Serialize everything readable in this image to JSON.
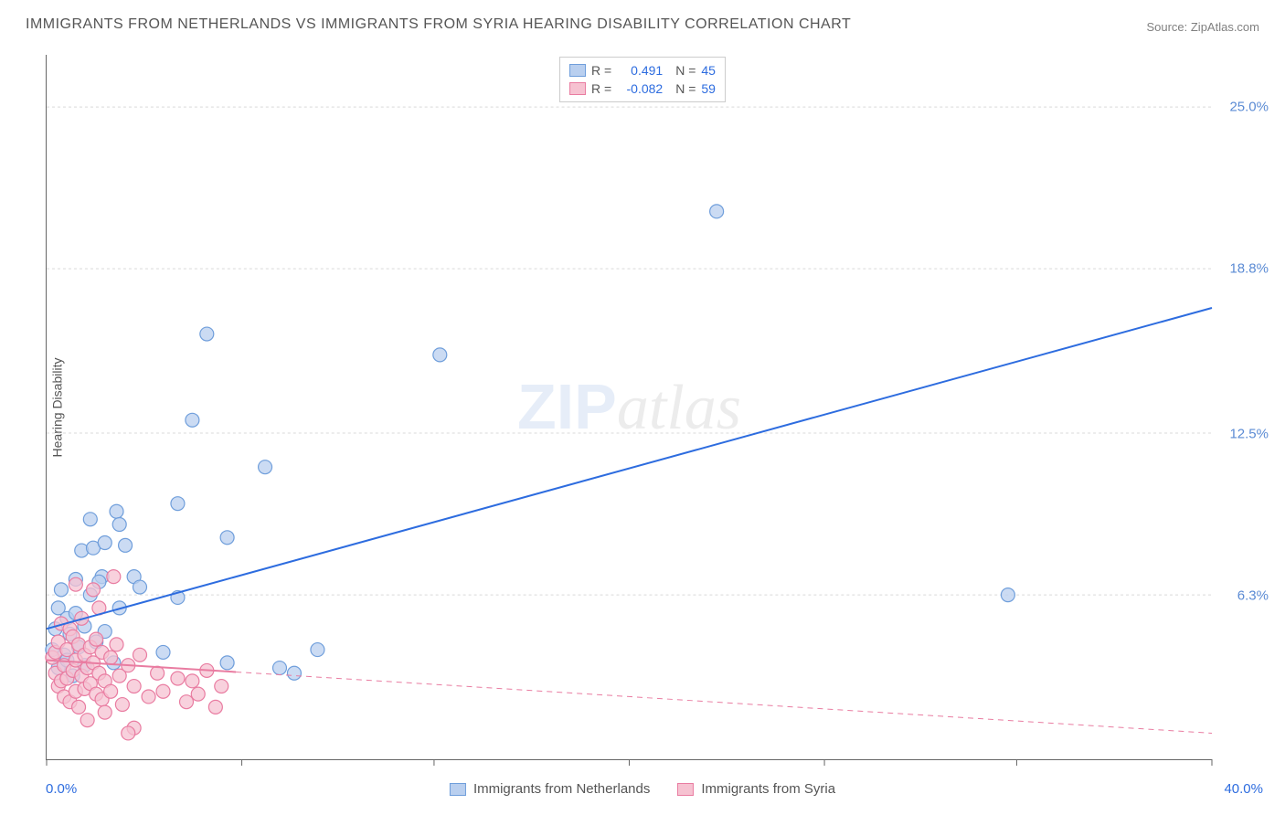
{
  "title": "IMMIGRANTS FROM NETHERLANDS VS IMMIGRANTS FROM SYRIA HEARING DISABILITY CORRELATION CHART",
  "source_label": "Source: ",
  "source_value": "ZipAtlas.com",
  "y_axis_label": "Hearing Disability",
  "watermark": {
    "part1": "ZIP",
    "part2": "atlas"
  },
  "chart": {
    "type": "scatter",
    "xlim": [
      0,
      40
    ],
    "ylim": [
      0,
      27
    ],
    "x_min_label": "0.0%",
    "x_max_label": "40.0%",
    "x_min_color": "#2d6cdf",
    "x_max_color": "#2d6cdf",
    "y_ticks": [
      {
        "v": 6.3,
        "label": "6.3%"
      },
      {
        "v": 12.5,
        "label": "12.5%"
      },
      {
        "v": 18.8,
        "label": "18.8%"
      },
      {
        "v": 25.0,
        "label": "25.0%"
      }
    ],
    "y_tick_color": "#5b8bd4",
    "grid_color": "#d9d9d9",
    "x_ticks": [
      0,
      6.7,
      13.3,
      20,
      26.7,
      33.3,
      40
    ],
    "background_color": "#ffffff",
    "series": [
      {
        "name": "Immigrants from Netherlands",
        "marker_fill": "#b9cfef",
        "marker_stroke": "#6f9edb",
        "marker_opacity": 0.75,
        "marker_radius": 7.5,
        "trend_color": "#2d6cdf",
        "trend_width": 2,
        "trend_dash": "none",
        "trend": {
          "x1": 0,
          "y1": 5.0,
          "x2": 40,
          "y2": 17.3
        },
        "r_label": "R =",
        "r_value": "0.491",
        "n_label": "N =",
        "n_value": "45",
        "points": [
          [
            0.2,
            4.2
          ],
          [
            0.3,
            5.0
          ],
          [
            0.4,
            3.5
          ],
          [
            0.4,
            5.8
          ],
          [
            0.5,
            6.5
          ],
          [
            0.6,
            4.0
          ],
          [
            0.7,
            3.8
          ],
          [
            0.7,
            5.4
          ],
          [
            0.8,
            4.8
          ],
          [
            0.9,
            3.2
          ],
          [
            1.0,
            6.9
          ],
          [
            1.0,
            5.6
          ],
          [
            1.1,
            4.3
          ],
          [
            1.2,
            8.0
          ],
          [
            1.3,
            5.1
          ],
          [
            1.3,
            3.6
          ],
          [
            1.5,
            6.3
          ],
          [
            1.5,
            9.2
          ],
          [
            1.6,
            8.1
          ],
          [
            1.7,
            4.5
          ],
          [
            1.9,
            7.0
          ],
          [
            2.0,
            8.3
          ],
          [
            2.0,
            4.9
          ],
          [
            2.3,
            3.7
          ],
          [
            2.4,
            9.5
          ],
          [
            2.5,
            5.8
          ],
          [
            2.7,
            8.2
          ],
          [
            3.0,
            7.0
          ],
          [
            3.2,
            6.6
          ],
          [
            4.0,
            4.1
          ],
          [
            4.5,
            6.2
          ],
          [
            4.5,
            9.8
          ],
          [
            2.5,
            9.0
          ],
          [
            5.0,
            13.0
          ],
          [
            5.5,
            16.3
          ],
          [
            6.2,
            8.5
          ],
          [
            6.2,
            3.7
          ],
          [
            7.5,
            11.2
          ],
          [
            8.5,
            3.3
          ],
          [
            9.3,
            4.2
          ],
          [
            8.0,
            3.5
          ],
          [
            13.5,
            15.5
          ],
          [
            23.0,
            21.0
          ],
          [
            33.0,
            6.3
          ],
          [
            1.8,
            6.8
          ]
        ]
      },
      {
        "name": "Immigrants from Syria",
        "marker_fill": "#f6c2d1",
        "marker_stroke": "#e97ca1",
        "marker_opacity": 0.75,
        "marker_radius": 7.5,
        "trend_color": "#e97ca1",
        "trend_width": 2,
        "trend_dash": "6,5",
        "trend": {
          "x1": 0,
          "y1": 3.8,
          "x2": 40,
          "y2": 1.0
        },
        "trend_solid_until": 6.5,
        "r_label": "R =",
        "r_value": "-0.082",
        "n_label": "N =",
        "n_value": "59",
        "points": [
          [
            0.2,
            3.9
          ],
          [
            0.3,
            4.1
          ],
          [
            0.3,
            3.3
          ],
          [
            0.4,
            2.8
          ],
          [
            0.4,
            4.5
          ],
          [
            0.5,
            3.0
          ],
          [
            0.5,
            5.2
          ],
          [
            0.6,
            3.6
          ],
          [
            0.6,
            2.4
          ],
          [
            0.7,
            4.2
          ],
          [
            0.7,
            3.1
          ],
          [
            0.8,
            2.2
          ],
          [
            0.8,
            5.0
          ],
          [
            0.9,
            3.4
          ],
          [
            0.9,
            4.7
          ],
          [
            1.0,
            2.6
          ],
          [
            1.0,
            3.8
          ],
          [
            1.1,
            4.4
          ],
          [
            1.1,
            2.0
          ],
          [
            1.2,
            3.2
          ],
          [
            1.2,
            5.4
          ],
          [
            1.3,
            2.7
          ],
          [
            1.3,
            4.0
          ],
          [
            1.4,
            3.5
          ],
          [
            1.4,
            1.5
          ],
          [
            1.5,
            4.3
          ],
          [
            1.5,
            2.9
          ],
          [
            1.6,
            3.7
          ],
          [
            1.6,
            6.5
          ],
          [
            1.7,
            2.5
          ],
          [
            1.7,
            4.6
          ],
          [
            1.8,
            3.3
          ],
          [
            1.8,
            5.8
          ],
          [
            1.9,
            2.3
          ],
          [
            1.9,
            4.1
          ],
          [
            2.0,
            3.0
          ],
          [
            2.0,
            1.8
          ],
          [
            2.2,
            3.9
          ],
          [
            2.2,
            2.6
          ],
          [
            2.4,
            4.4
          ],
          [
            2.5,
            3.2
          ],
          [
            2.6,
            2.1
          ],
          [
            2.8,
            3.6
          ],
          [
            3.0,
            2.8
          ],
          [
            3.2,
            4.0
          ],
          [
            3.5,
            2.4
          ],
          [
            3.8,
            3.3
          ],
          [
            4.0,
            2.6
          ],
          [
            1.0,
            6.7
          ],
          [
            2.3,
            7.0
          ],
          [
            4.5,
            3.1
          ],
          [
            4.8,
            2.2
          ],
          [
            5.0,
            3.0
          ],
          [
            5.2,
            2.5
          ],
          [
            5.5,
            3.4
          ],
          [
            5.8,
            2.0
          ],
          [
            6.0,
            2.8
          ],
          [
            3.0,
            1.2
          ],
          [
            2.8,
            1.0
          ]
        ]
      }
    ]
  }
}
